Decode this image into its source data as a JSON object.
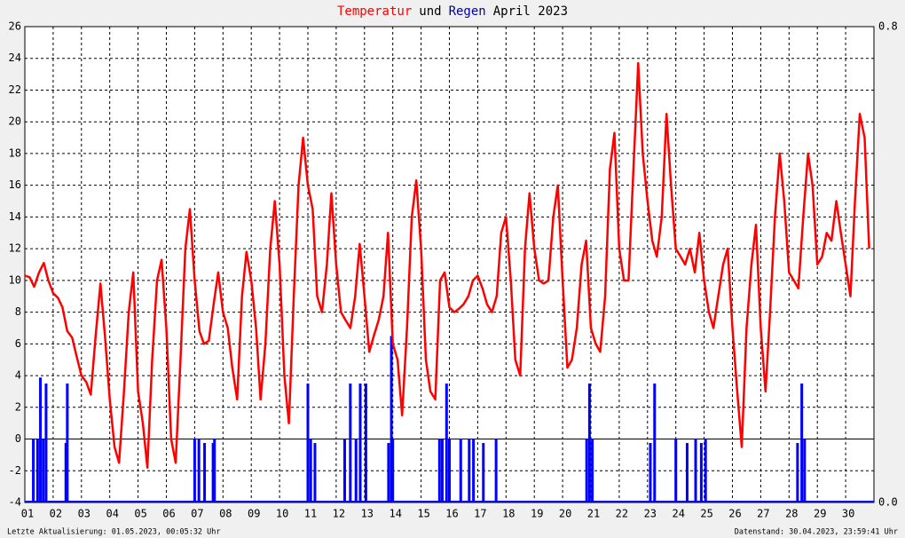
{
  "chart_data": {
    "type": "line_bar",
    "title_suffix": "April 2023",
    "title_joiner": "und",
    "footer_left": "Letzte Aktualisierung: 01.05.2023, 00:05:32 Uhr",
    "footer_right": "Datenstand: 30.04.2023, 23:59:41 Uhr",
    "xlim": [
      1,
      31
    ],
    "ylim": [
      -4,
      26
    ],
    "y2lim": [
      0,
      0.8
    ],
    "grid": true,
    "xticks": [
      {
        "value": 1,
        "label": "01"
      },
      {
        "value": 2,
        "label": "02"
      },
      {
        "value": 3,
        "label": "03"
      },
      {
        "value": 4,
        "label": "04"
      },
      {
        "value": 5,
        "label": "05"
      },
      {
        "value": 6,
        "label": "06"
      },
      {
        "value": 7,
        "label": "07"
      },
      {
        "value": 8,
        "label": "08"
      },
      {
        "value": 9,
        "label": "09"
      },
      {
        "value": 10,
        "label": "10"
      },
      {
        "value": 11,
        "label": "11"
      },
      {
        "value": 12,
        "label": "12"
      },
      {
        "value": 13,
        "label": "13"
      },
      {
        "value": 14,
        "label": "14"
      },
      {
        "value": 15,
        "label": "15"
      },
      {
        "value": 16,
        "label": "16"
      },
      {
        "value": 17,
        "label": "17"
      },
      {
        "value": 18,
        "label": "18"
      },
      {
        "value": 19,
        "label": "19"
      },
      {
        "value": 20,
        "label": "20"
      },
      {
        "value": 21,
        "label": "21"
      },
      {
        "value": 22,
        "label": "22"
      },
      {
        "value": 23,
        "label": "23"
      },
      {
        "value": 24,
        "label": "24"
      },
      {
        "value": 25,
        "label": "25"
      },
      {
        "value": 26,
        "label": "26"
      },
      {
        "value": 27,
        "label": "27"
      },
      {
        "value": 28,
        "label": "28"
      },
      {
        "value": 29,
        "label": "29"
      },
      {
        "value": 30,
        "label": "30"
      }
    ],
    "yticks": [
      -4,
      -2,
      0,
      2,
      4,
      6,
      8,
      10,
      12,
      14,
      16,
      18,
      20,
      22,
      24,
      26
    ],
    "y2ticks": [
      {
        "value": 0,
        "label": "0.0"
      },
      {
        "value": 0.8,
        "label": "0.8"
      }
    ],
    "series": [
      {
        "name": "Temperatur",
        "color": "#ff0000",
        "kind": "line",
        "x": [
          1,
          1.17,
          1.33,
          1.5,
          1.67,
          1.83,
          2,
          2.17,
          2.33,
          2.5,
          2.67,
          2.83,
          3,
          3.17,
          3.33,
          3.5,
          3.67,
          3.83,
          4,
          4.17,
          4.33,
          4.5,
          4.67,
          4.83,
          5,
          5.17,
          5.33,
          5.5,
          5.67,
          5.83,
          6,
          6.17,
          6.33,
          6.5,
          6.67,
          6.83,
          7,
          7.17,
          7.33,
          7.5,
          7.67,
          7.83,
          8,
          8.17,
          8.33,
          8.5,
          8.67,
          8.83,
          9,
          9.17,
          9.33,
          9.5,
          9.67,
          9.83,
          10,
          10.17,
          10.33,
          10.5,
          10.67,
          10.83,
          11,
          11.17,
          11.33,
          11.5,
          11.67,
          11.83,
          12,
          12.17,
          12.33,
          12.5,
          12.67,
          12.83,
          13,
          13.17,
          13.33,
          13.5,
          13.67,
          13.83,
          14,
          14.17,
          14.33,
          14.5,
          14.67,
          14.83,
          15,
          15.17,
          15.33,
          15.5,
          15.67,
          15.83,
          16,
          16.17,
          16.33,
          16.5,
          16.67,
          16.83,
          17,
          17.17,
          17.33,
          17.5,
          17.67,
          17.83,
          18,
          18.17,
          18.33,
          18.5,
          18.67,
          18.83,
          19,
          19.17,
          19.33,
          19.5,
          19.67,
          19.83,
          20,
          20.17,
          20.33,
          20.5,
          20.67,
          20.83,
          21,
          21.17,
          21.33,
          21.5,
          21.67,
          21.83,
          22,
          22.17,
          22.33,
          22.5,
          22.67,
          22.83,
          23,
          23.17,
          23.33,
          23.5,
          23.67,
          23.83,
          24,
          24.17,
          24.33,
          24.5,
          24.67,
          24.83,
          25,
          25.17,
          25.33,
          25.5,
          25.67,
          25.83,
          26,
          26.17,
          26.33,
          26.5,
          26.67,
          26.83,
          27,
          27.17,
          27.33,
          27.5,
          27.67,
          27.83,
          28,
          28.17,
          28.33,
          28.5,
          28.67,
          28.83,
          29,
          29.17,
          29.33,
          29.5,
          29.67,
          29.83,
          30,
          30.17,
          30.33,
          30.5,
          30.67,
          30.83
        ],
        "values": [
          10.3,
          10.2,
          9.6,
          10.5,
          11.1,
          10.0,
          9.2,
          8.9,
          8.3,
          6.8,
          6.4,
          5.2,
          4.0,
          3.6,
          2.8,
          6.5,
          9.8,
          6.5,
          2.5,
          -0.5,
          -1.5,
          3,
          8,
          10.5,
          3,
          1,
          -1.8,
          5,
          10,
          11.3,
          7,
          0,
          -1.5,
          5,
          12,
          14.5,
          10,
          6.8,
          6,
          6.2,
          8.5,
          10.5,
          8,
          7,
          4.5,
          2.5,
          9,
          11.8,
          10,
          7,
          2.5,
          6,
          12,
          15,
          11,
          4,
          1,
          9,
          16,
          19,
          16,
          14.5,
          9,
          8,
          11,
          15.5,
          11,
          8,
          7.5,
          7,
          9,
          12.3,
          9,
          5.5,
          6.5,
          7.5,
          9,
          13,
          6,
          5,
          1.5,
          7,
          14,
          16.3,
          12,
          5,
          3,
          2.5,
          10,
          10.5,
          8.3,
          8,
          8.2,
          8.5,
          9,
          10,
          10.3,
          9.5,
          8.5,
          8,
          9,
          13,
          14,
          10,
          5,
          4,
          12,
          15.5,
          12,
          10,
          9.8,
          10,
          14,
          16,
          10,
          4.5,
          5,
          7,
          11,
          12.5,
          7,
          6,
          5.5,
          9,
          17,
          19.3,
          12,
          10,
          10,
          17,
          23.7,
          18,
          15,
          12.5,
          11.5,
          14,
          20.5,
          16,
          12,
          11.5,
          11,
          12,
          10.5,
          13,
          10,
          8,
          7,
          9,
          11,
          12,
          7,
          3,
          -0.5,
          7,
          11,
          13.5,
          7,
          3,
          8,
          14,
          18,
          15,
          10.5,
          10,
          9.5,
          14,
          18,
          16,
          11,
          11.5,
          13,
          12.5,
          15,
          13,
          11,
          9,
          15,
          20.5,
          19,
          12
        ]
      },
      {
        "name": "Regen",
        "color": "#0000ff",
        "kind": "bar",
        "axis": "y2",
        "x": [
          1.3,
          1.45,
          1.55,
          1.65,
          1.75,
          2.45,
          2.5,
          7.0,
          7.15,
          7.35,
          7.65,
          7.7,
          11.0,
          11.1,
          11.25,
          12.3,
          12.5,
          12.7,
          12.85,
          13.05,
          13.85,
          13.95,
          14.0,
          15.65,
          15.75,
          15.9,
          16.0,
          16.4,
          16.7,
          16.85,
          17.2,
          17.65,
          20.85,
          20.95,
          21.05,
          23.1,
          23.25,
          24.0,
          24.4,
          24.7,
          24.9,
          25.05,
          28.3,
          28.45,
          28.55
        ],
        "values": [
          0.107,
          0.107,
          0.21,
          0.107,
          0.2,
          0.1,
          0.2,
          0.107,
          0.107,
          0.1,
          0.1,
          0.107,
          0.2,
          0.107,
          0.1,
          0.107,
          0.2,
          0.107,
          0.2,
          0.2,
          0.1,
          0.28,
          0.107,
          0.107,
          0.107,
          0.2,
          0.107,
          0.107,
          0.107,
          0.107,
          0.1,
          0.107,
          0.107,
          0.2,
          0.107,
          0.1,
          0.2,
          0.107,
          0.1,
          0.107,
          0.1,
          0.107,
          0.1,
          0.2,
          0.107
        ]
      }
    ]
  }
}
